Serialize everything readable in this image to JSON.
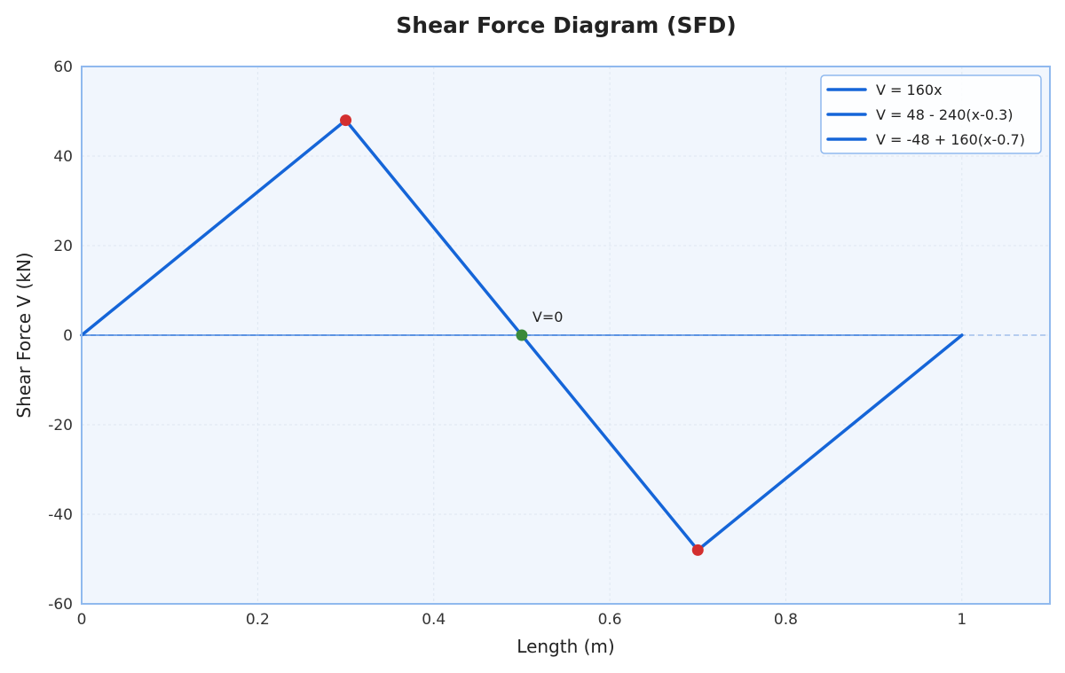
{
  "chart_data": {
    "type": "line",
    "title": "Shear Force Diagram (SFD)",
    "xlabel": "Length (m)",
    "ylabel": "Shear Force V (kN)",
    "xlim": [
      0,
      1.1
    ],
    "ylim": [
      -60,
      60
    ],
    "x_ticks": [
      0,
      0.2,
      0.4,
      0.6,
      0.8,
      1
    ],
    "x_tick_labels": [
      "0",
      "0.2",
      "0.4",
      "0.6",
      "0.8",
      "1"
    ],
    "y_ticks": [
      60,
      40,
      20,
      0,
      -20,
      -40,
      -60
    ],
    "y_tick_labels": [
      "60",
      "40",
      "20",
      "0",
      "-20",
      "-40",
      "-60"
    ],
    "grid": true,
    "legend_position": "top-right",
    "zero_line": {
      "y": 0,
      "style": "dashed"
    },
    "series": [
      {
        "name": "V = 160x",
        "x": [
          0,
          0.3
        ],
        "y": [
          0,
          48
        ],
        "color": "#1565d8"
      },
      {
        "name": "V = 48 - 240(x-0.3)",
        "x": [
          0.3,
          0.7
        ],
        "y": [
          48,
          -48
        ],
        "color": "#1565d8"
      },
      {
        "name": "V = -48 + 160(x-0.7)",
        "x": [
          0.7,
          1.0
        ],
        "y": [
          -48,
          0
        ],
        "color": "#1565d8"
      }
    ],
    "markers": [
      {
        "x": 0.3,
        "y": 48,
        "color": "#d32f2f"
      },
      {
        "x": 0.7,
        "y": -48,
        "color": "#d32f2f"
      },
      {
        "x": 0.5,
        "y": 0,
        "color": "#3a8a3a"
      }
    ],
    "annotations": [
      {
        "text": "V=0",
        "x": 0.5,
        "y": 0
      }
    ],
    "colors": {
      "line": "#1565d8",
      "plot_background": "#f1f6fd",
      "frame": "#90b9ee",
      "grid": "#dfe7f1",
      "zero_line": "#b5cdf0",
      "max_marker": "#d32f2f",
      "zero_marker": "#3a8a3a"
    }
  }
}
